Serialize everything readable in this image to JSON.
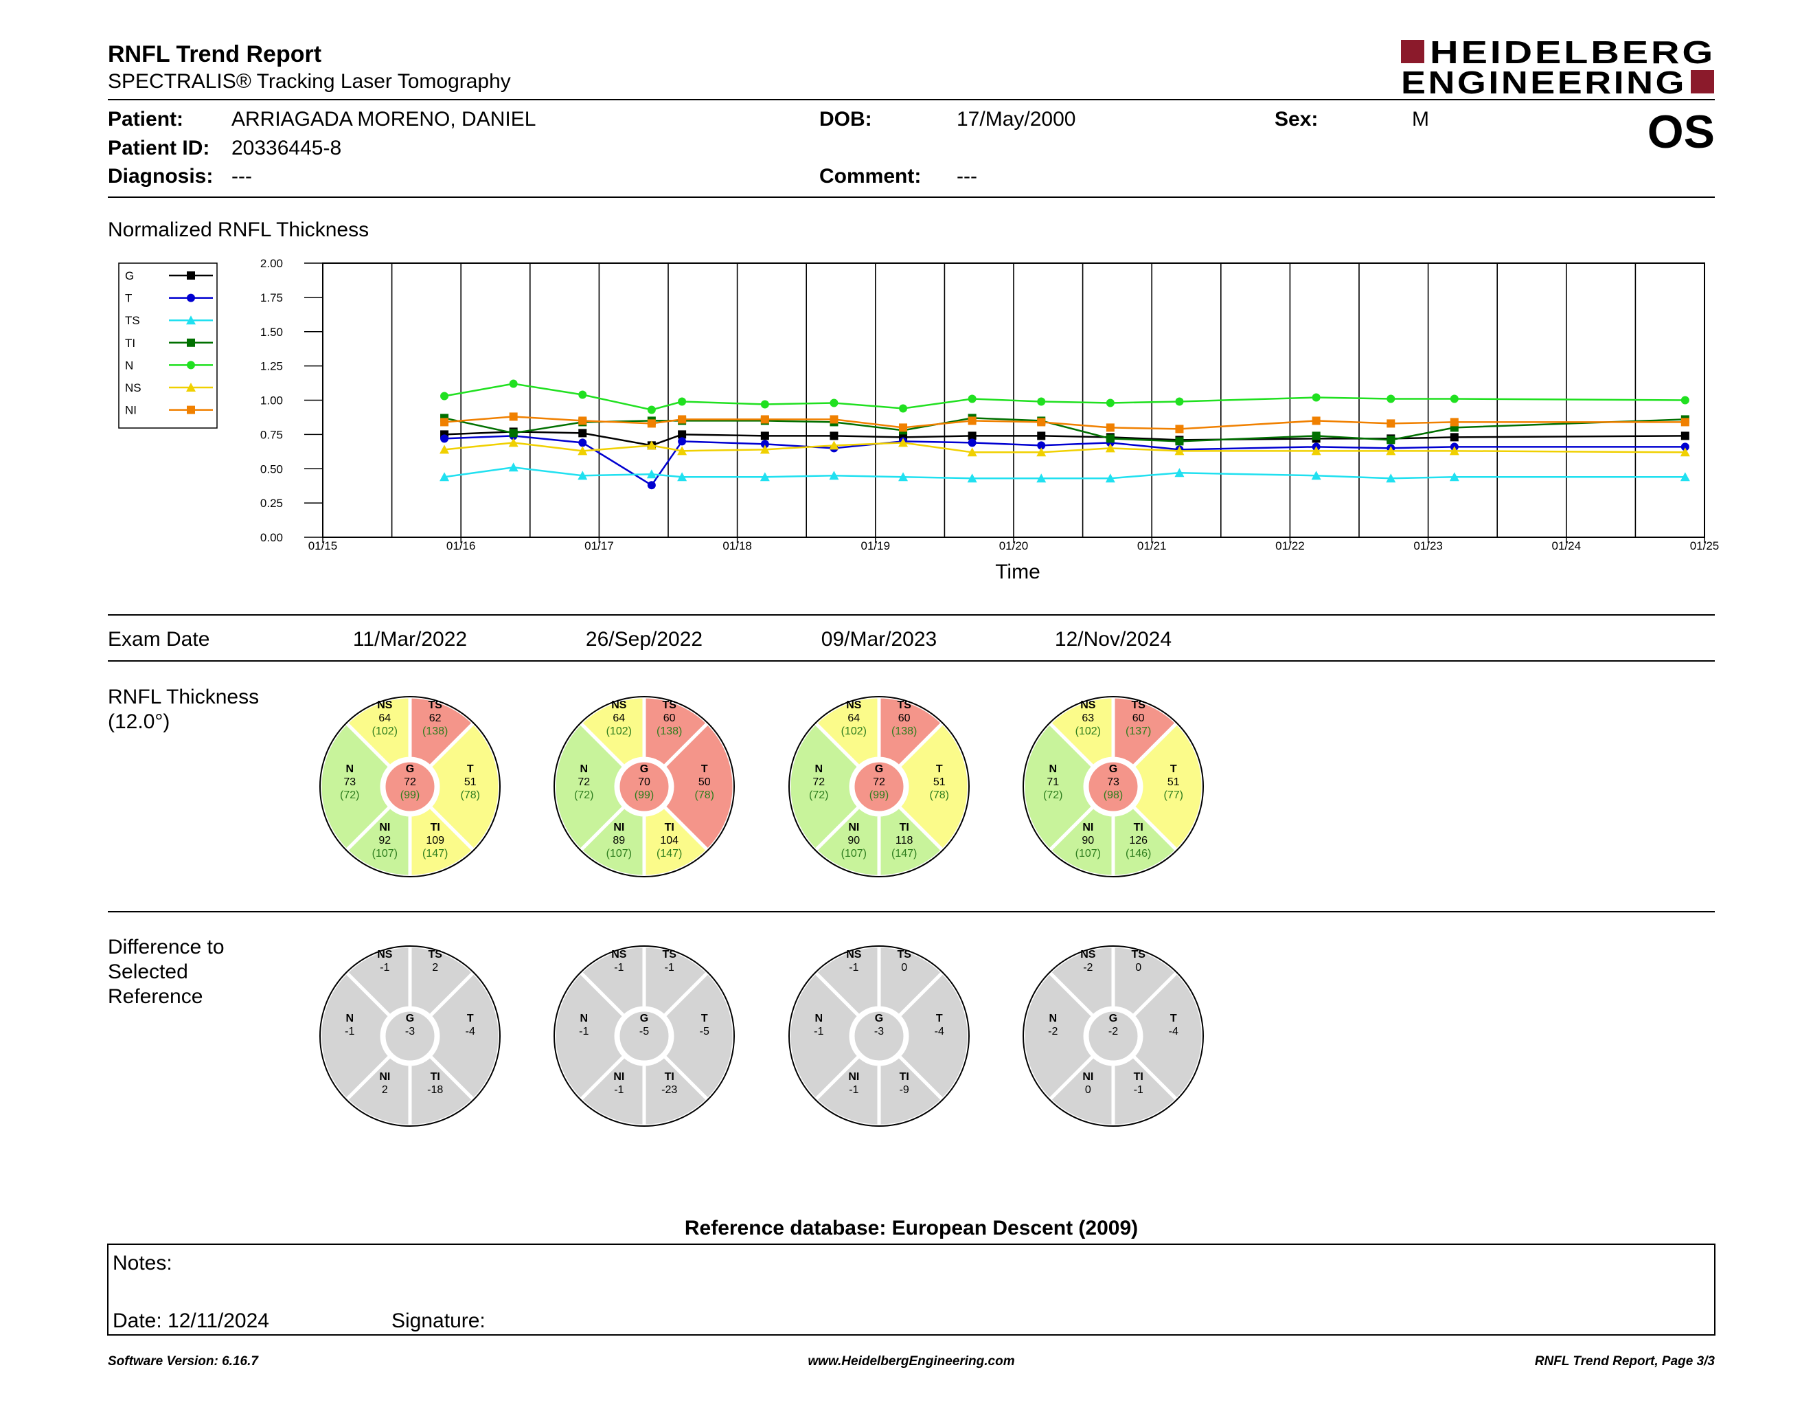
{
  "header": {
    "title": "RNFL Trend Report",
    "subtitle": "SPECTRALIS® Tracking Laser Tomography",
    "logo_line1": "HEIDELBERG",
    "logo_line2": "ENGINEERING",
    "eye": "OS"
  },
  "patient": {
    "patient_label": "Patient:",
    "patient_value": "ARRIAGADA MORENO, DANIEL",
    "dob_label": "DOB:",
    "dob_value": "17/May/2000",
    "sex_label": "Sex:",
    "sex_value": "M",
    "id_label": "Patient ID:",
    "id_value": "20336445-8",
    "diagnosis_label": "Diagnosis:",
    "diagnosis_value": "---",
    "comment_label": "Comment:",
    "comment_value": "---"
  },
  "colors": {
    "G": "#000000",
    "T": "#0000d0",
    "TS": "#20e0f0",
    "TI": "#007000",
    "N": "#20e020",
    "NS": "#f0d000",
    "NI": "#f08000",
    "red": "#f4958a",
    "yellow": "#fbfb8a",
    "green": "#c8f39b",
    "gray": "#d4d4d4"
  },
  "chart_data": {
    "type": "line",
    "title": "Normalized RNFL Thickness",
    "xlabel": "Time",
    "ylabel": "",
    "ylim": [
      0,
      2
    ],
    "yticks": [
      "0.00",
      "0.25",
      "0.50",
      "0.75",
      "1.00",
      "1.25",
      "1.50",
      "1.75",
      "2.00"
    ],
    "xlim": [
      2015.0,
      2025.0
    ],
    "xticks": [
      "01/15",
      "01/16",
      "01/17",
      "01/18",
      "01/19",
      "01/20",
      "01/21",
      "01/22",
      "01/23",
      "01/24",
      "01/25"
    ],
    "x": [
      2015.88,
      2016.38,
      2016.88,
      2017.38,
      2017.6,
      2018.2,
      2018.7,
      2019.2,
      2019.7,
      2020.2,
      2020.7,
      2021.2,
      2022.19,
      2022.73,
      2023.19,
      2024.86
    ],
    "legend": [
      "G",
      "T",
      "TS",
      "TI",
      "N",
      "NS",
      "NI"
    ],
    "grid": true,
    "series": [
      {
        "name": "G",
        "marker": "square",
        "values": [
          0.75,
          0.77,
          0.76,
          0.67,
          0.75,
          0.74,
          0.74,
          0.73,
          0.74,
          0.74,
          0.73,
          0.71,
          0.72,
          0.72,
          0.73,
          0.74
        ]
      },
      {
        "name": "T",
        "marker": "circle",
        "values": [
          0.72,
          0.74,
          0.69,
          0.38,
          0.7,
          0.68,
          0.65,
          0.7,
          0.69,
          0.67,
          0.69,
          0.64,
          0.66,
          0.65,
          0.66,
          0.66
        ]
      },
      {
        "name": "TS",
        "marker": "triangle",
        "values": [
          0.44,
          0.51,
          0.45,
          0.46,
          0.44,
          0.44,
          0.45,
          0.44,
          0.43,
          0.43,
          0.43,
          0.47,
          0.45,
          0.43,
          0.44,
          0.44
        ]
      },
      {
        "name": "TI",
        "marker": "square",
        "values": [
          0.87,
          0.76,
          0.84,
          0.85,
          0.85,
          0.85,
          0.84,
          0.78,
          0.87,
          0.85,
          0.72,
          0.7,
          0.74,
          0.71,
          0.8,
          0.86
        ]
      },
      {
        "name": "N",
        "marker": "circle",
        "values": [
          1.03,
          1.12,
          1.04,
          0.93,
          0.99,
          0.97,
          0.98,
          0.94,
          1.01,
          0.99,
          0.98,
          0.99,
          1.02,
          1.01,
          1.01,
          1.0
        ]
      },
      {
        "name": "NS",
        "marker": "triangle",
        "values": [
          0.64,
          0.69,
          0.63,
          0.67,
          0.63,
          0.64,
          0.67,
          0.69,
          0.62,
          0.62,
          0.65,
          0.63,
          0.63,
          0.63,
          0.63,
          0.62
        ]
      },
      {
        "name": "NI",
        "marker": "square",
        "values": [
          0.84,
          0.88,
          0.85,
          0.83,
          0.86,
          0.86,
          0.86,
          0.8,
          0.85,
          0.84,
          0.8,
          0.79,
          0.85,
          0.83,
          0.84,
          0.84
        ]
      }
    ]
  },
  "exams": {
    "label": "Exam Date",
    "dates": [
      "11/Mar/2022",
      "26/Sep/2022",
      "09/Mar/2023",
      "12/Nov/2024"
    ]
  },
  "thickness": {
    "label_line1": "RNFL Thickness",
    "label_line2": "(12.0°)",
    "circles": [
      {
        "NS": [
          "64",
          "(102)",
          "yellow"
        ],
        "TS": [
          "62",
          "(138)",
          "red"
        ],
        "N": [
          "73",
          "(72)",
          "green"
        ],
        "G": [
          "72",
          "(99)",
          "red"
        ],
        "T": [
          "51",
          "(78)",
          "yellow"
        ],
        "NI": [
          "92",
          "(107)",
          "green"
        ],
        "TI": [
          "109",
          "(147)",
          "yellow"
        ]
      },
      {
        "NS": [
          "64",
          "(102)",
          "yellow"
        ],
        "TS": [
          "60",
          "(138)",
          "red"
        ],
        "N": [
          "72",
          "(72)",
          "green"
        ],
        "G": [
          "70",
          "(99)",
          "red"
        ],
        "T": [
          "50",
          "(78)",
          "red"
        ],
        "NI": [
          "89",
          "(107)",
          "green"
        ],
        "TI": [
          "104",
          "(147)",
          "yellow"
        ]
      },
      {
        "NS": [
          "64",
          "(102)",
          "yellow"
        ],
        "TS": [
          "60",
          "(138)",
          "red"
        ],
        "N": [
          "72",
          "(72)",
          "green"
        ],
        "G": [
          "72",
          "(99)",
          "red"
        ],
        "T": [
          "51",
          "(78)",
          "yellow"
        ],
        "NI": [
          "90",
          "(107)",
          "green"
        ],
        "TI": [
          "118",
          "(147)",
          "green"
        ]
      },
      {
        "NS": [
          "63",
          "(102)",
          "yellow"
        ],
        "TS": [
          "60",
          "(137)",
          "red"
        ],
        "N": [
          "71",
          "(72)",
          "green"
        ],
        "G": [
          "73",
          "(98)",
          "red"
        ],
        "T": [
          "51",
          "(77)",
          "yellow"
        ],
        "NI": [
          "90",
          "(107)",
          "green"
        ],
        "TI": [
          "126",
          "(146)",
          "green"
        ]
      }
    ]
  },
  "difference": {
    "label_line1": "Difference to",
    "label_line2": "Selected",
    "label_line3": "Reference",
    "circles": [
      {
        "NS": "-1",
        "TS": "2",
        "N": "-1",
        "G": "-3",
        "T": "-4",
        "NI": "2",
        "TI": "-18"
      },
      {
        "NS": "-1",
        "TS": "-1",
        "N": "-1",
        "G": "-5",
        "T": "-5",
        "NI": "-1",
        "TI": "-23"
      },
      {
        "NS": "-1",
        "TS": "0",
        "N": "-1",
        "G": "-3",
        "T": "-4",
        "NI": "-1",
        "TI": "-9"
      },
      {
        "NS": "-2",
        "TS": "0",
        "N": "-2",
        "G": "-2",
        "T": "-4",
        "NI": "0",
        "TI": "-1"
      }
    ]
  },
  "reference_db": "Reference database: European Descent (2009)",
  "notes": {
    "notes_label": "Notes:",
    "date_label": "Date: 12/11/2024",
    "signature_label": "Signature:"
  },
  "footer": {
    "version": "Software Version: 6.16.7",
    "website": "www.HeidelbergEngineering.com",
    "page": "RNFL Trend Report, Page 3/3"
  }
}
